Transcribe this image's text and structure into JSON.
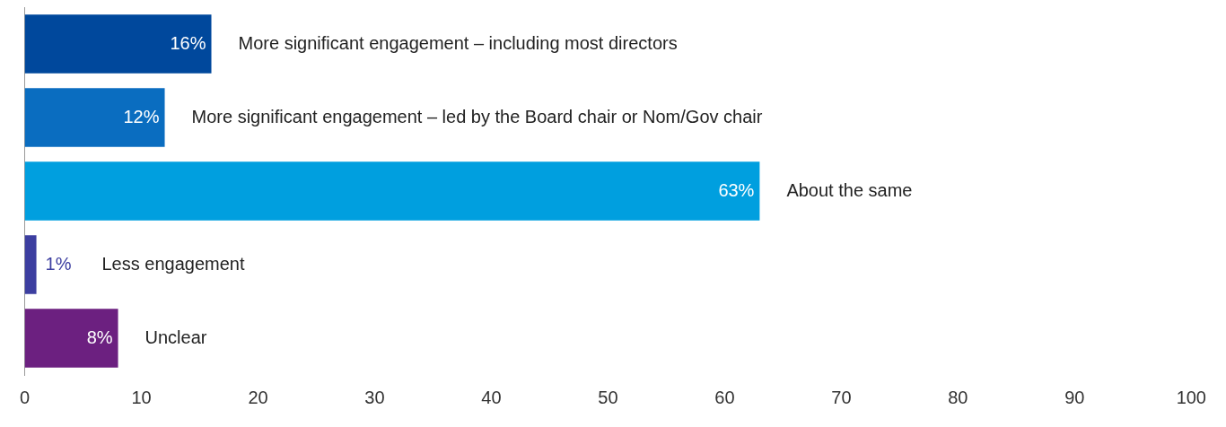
{
  "chart_data": {
    "type": "bar",
    "orientation": "horizontal",
    "categories": [
      "More significant engagement – including most directors",
      "More significant engagement – led by the Board chair or Nom/Gov chair",
      "About the same",
      "Less engagement",
      "Unclear"
    ],
    "values": [
      16,
      12,
      63,
      1,
      8
    ],
    "colors": [
      "#00489c",
      "#0a6dc0",
      "#009fdf",
      "#3c3ea0",
      "#6c2080"
    ],
    "value_labels": [
      "16%",
      "12%",
      "63%",
      "1%",
      "8%"
    ],
    "xlim": [
      0,
      100
    ],
    "xticks": [
      0,
      10,
      20,
      30,
      40,
      50,
      60,
      70,
      80,
      90,
      100
    ],
    "grid": false
  }
}
